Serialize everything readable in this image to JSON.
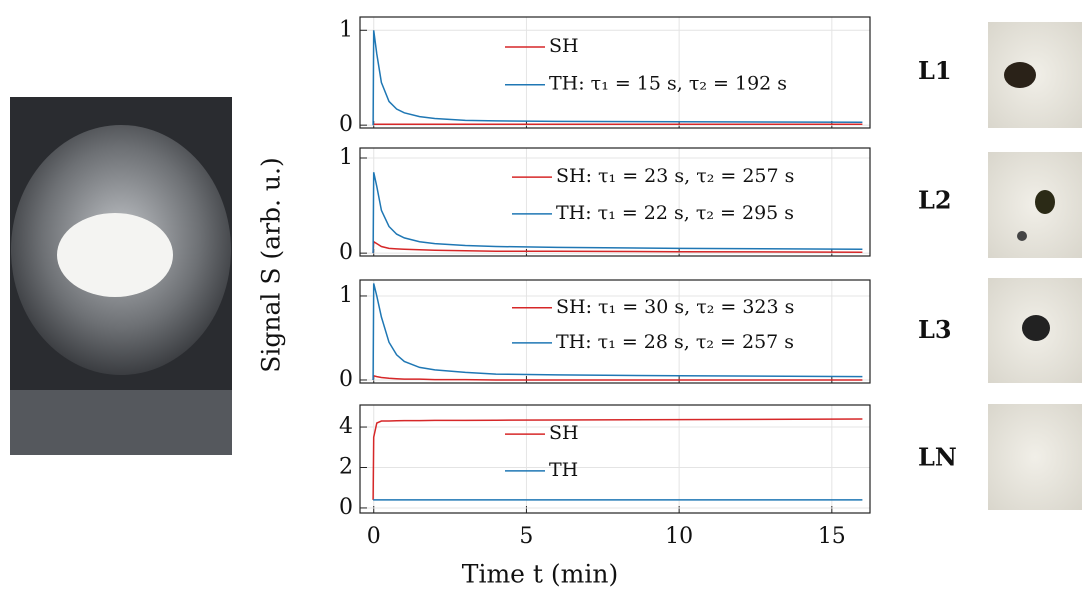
{
  "chart_data": [
    {
      "type": "line",
      "panel_label": "L1",
      "legend": "upper center",
      "ylabel": "Signal S (arb. u.)",
      "x": [
        -0.02,
        0,
        0.1,
        0.25,
        0.5,
        0.75,
        1,
        1.5,
        2,
        3,
        4,
        6,
        10,
        16
      ],
      "xlim": [
        -0.45,
        16.25
      ],
      "xticks": [
        0,
        5,
        10,
        15
      ],
      "ylim": [
        -0.03,
        1.14
      ],
      "yticks": [
        0,
        1
      ],
      "series": [
        {
          "name": "SH",
          "color": "#d62728",
          "values": [
            0.01,
            0.01,
            0.01,
            0.01,
            0.01,
            0.01,
            0.01,
            0.01,
            0.01,
            0.01,
            0.01,
            0.01,
            0.01,
            0.01
          ]
        },
        {
          "name": "TH: τ₁ = 15 s, τ₂ = 192 s",
          "color": "#1f77b4",
          "values": [
            0,
            1.0,
            0.75,
            0.45,
            0.25,
            0.17,
            0.13,
            0.09,
            0.07,
            0.05,
            0.045,
            0.04,
            0.035,
            0.03
          ]
        }
      ]
    },
    {
      "type": "line",
      "panel_label": "L2",
      "legend": "upper right",
      "x": [
        -0.02,
        0,
        0.1,
        0.25,
        0.5,
        0.75,
        1,
        1.5,
        2,
        3,
        4,
        6,
        10,
        16
      ],
      "xlim": [
        -0.45,
        16.25
      ],
      "xticks": [
        0,
        5,
        10,
        15
      ],
      "ylim": [
        -0.03,
        1.105
      ],
      "yticks": [
        0,
        1
      ],
      "series": [
        {
          "name": "SH: τ₁ = 23 s, τ₂ = 257 s",
          "color": "#d62728",
          "values": [
            0,
            0.12,
            0.1,
            0.07,
            0.05,
            0.045,
            0.04,
            0.035,
            0.03,
            0.025,
            0.02,
            0.02,
            0.015,
            0.01
          ]
        },
        {
          "name": "TH: τ₁ = 22 s, τ₂ = 295 s",
          "color": "#1f77b4",
          "values": [
            0,
            0.85,
            0.7,
            0.45,
            0.28,
            0.2,
            0.16,
            0.12,
            0.1,
            0.08,
            0.07,
            0.06,
            0.05,
            0.04
          ]
        }
      ]
    },
    {
      "type": "line",
      "panel_label": "L3",
      "legend": "upper right",
      "x": [
        -0.02,
        0,
        0.1,
        0.25,
        0.5,
        0.75,
        1,
        1.5,
        2,
        3,
        4,
        6,
        10,
        16
      ],
      "xlim": [
        -0.45,
        16.25
      ],
      "xticks": [
        0,
        5,
        10,
        15
      ],
      "ylim": [
        -0.036,
        1.19
      ],
      "yticks": [
        0,
        1
      ],
      "series": [
        {
          "name": "SH: τ₁ = 30 s, τ₂ = 323 s",
          "color": "#d62728",
          "values": [
            0,
            0.05,
            0.04,
            0.03,
            0.02,
            0.015,
            0.01,
            0.01,
            0.005,
            0.005,
            0,
            0,
            0,
            0
          ]
        },
        {
          "name": "TH: τ₁ = 28 s, τ₂ = 257 s",
          "color": "#1f77b4",
          "values": [
            0,
            1.15,
            1.0,
            0.75,
            0.45,
            0.3,
            0.22,
            0.15,
            0.12,
            0.09,
            0.07,
            0.06,
            0.05,
            0.04
          ]
        }
      ]
    },
    {
      "type": "line",
      "panel_label": "LN",
      "legend": "upper center",
      "xlabel": "Time t (min)",
      "x": [
        -0.02,
        0,
        0.1,
        0.25,
        0.5,
        0.75,
        1,
        1.5,
        2,
        3,
        4,
        6,
        10,
        16
      ],
      "xlim": [
        -0.45,
        16.25
      ],
      "xticks": [
        0,
        5,
        10,
        15
      ],
      "ylim": [
        -0.25,
        5.09
      ],
      "yticks": [
        0,
        2,
        4
      ],
      "series": [
        {
          "name": "SH",
          "color": "#d62728",
          "values": [
            0.4,
            3.5,
            4.2,
            4.3,
            4.3,
            4.31,
            4.32,
            4.32,
            4.33,
            4.33,
            4.34,
            4.35,
            4.37,
            4.4
          ]
        },
        {
          "name": "TH",
          "color": "#1f77b4",
          "values": [
            0.4,
            0.4,
            0.4,
            0.4,
            0.4,
            0.4,
            0.4,
            0.4,
            0.4,
            0.4,
            0.4,
            0.4,
            0.4,
            0.4
          ]
        }
      ]
    }
  ]
}
